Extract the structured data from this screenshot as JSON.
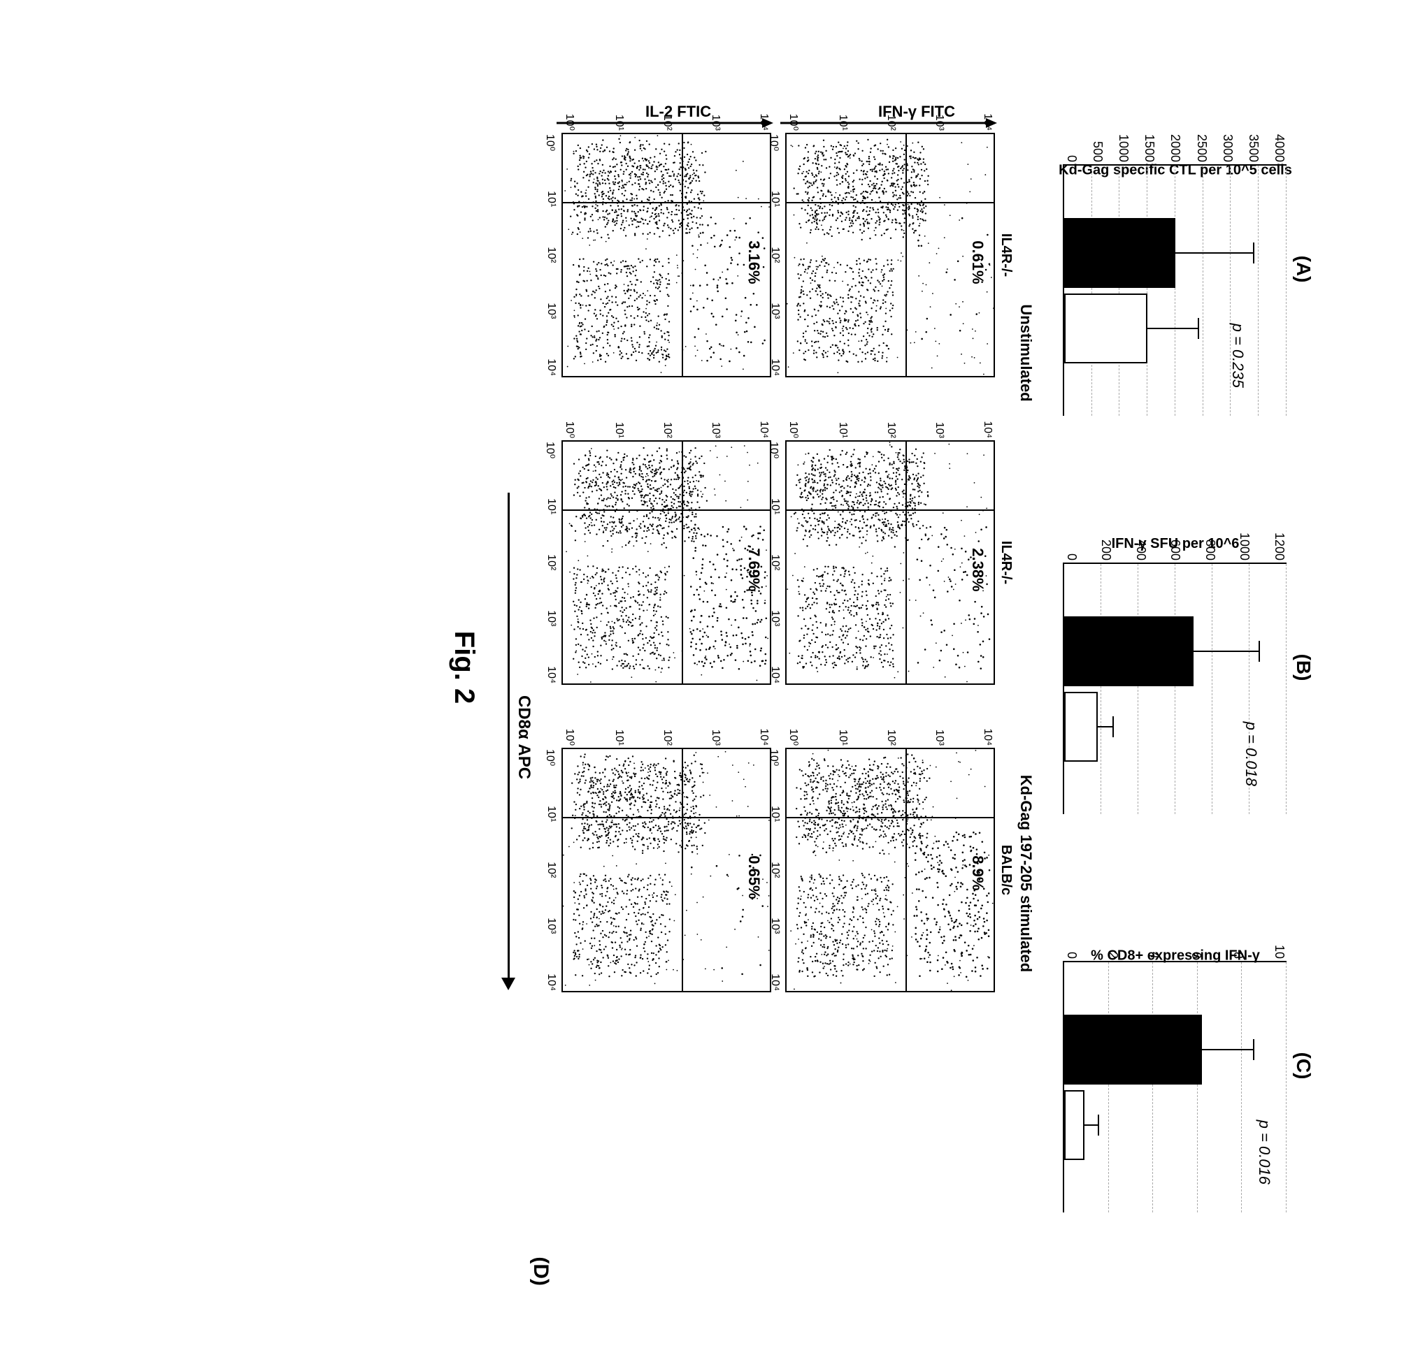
{
  "figure_caption": "Fig. 2",
  "panels": {
    "A": {
      "label": "(A)",
      "y_label": "Kd-Gag specific CTL per 10^5 cells",
      "y_ticks": [
        "4000",
        "3500",
        "3000",
        "2500",
        "2000",
        "1500",
        "1000",
        "500",
        "0"
      ],
      "y_max": 4000,
      "p_value": "p = 0.235",
      "p_value_top_pct": 18,
      "bars": [
        {
          "value": 2000,
          "error": 1400,
          "fill": "black"
        },
        {
          "value": 1500,
          "error": 900,
          "fill": "white"
        }
      ]
    },
    "B": {
      "label": "(B)",
      "y_label": "IFN-γ SFU per 10^6",
      "y_ticks": [
        "1200",
        "1000",
        "800",
        "600",
        "400",
        "200",
        "0"
      ],
      "y_max": 1200,
      "p_value": "p = 0.018",
      "p_value_top_pct": 12,
      "bars": [
        {
          "value": 700,
          "error": 350,
          "fill": "black"
        },
        {
          "value": 180,
          "error": 80,
          "fill": "white"
        }
      ]
    },
    "C": {
      "label": "(C)",
      "y_label": "% CD8+ expressing IFN-γ",
      "y_ticks": [
        "10",
        "8",
        "6",
        "4",
        "2",
        "0"
      ],
      "y_max": 10,
      "p_value": "p = 0.016",
      "p_value_top_pct": 6,
      "bars": [
        {
          "value": 6.2,
          "error": 2.3,
          "fill": "black"
        },
        {
          "value": 0.9,
          "error": 0.6,
          "fill": "white"
        }
      ]
    }
  },
  "panel_D_label": "(D)",
  "stimulation_headers": [
    "Unstimulated",
    "Kd-Gag 197-205  stimulated"
  ],
  "scatter_row1_ylabel": "IFN-γ FITC",
  "scatter_row2_ylabel": "IL-2 FTIC",
  "x_axis_label": "CD8α APC",
  "log_ticks": [
    "10⁰",
    "10¹",
    "10²",
    "10³",
    "10⁴"
  ],
  "row1": [
    {
      "title": "IL4R-/-",
      "pct": "0.61%",
      "seed": 1
    },
    {
      "title": "IL4R-/-",
      "pct": "2.38%",
      "seed": 2
    },
    {
      "title": "BALB/c",
      "pct": "8.9%",
      "seed": 3
    }
  ],
  "row2": [
    {
      "title": "",
      "pct": "3.16%",
      "seed": 4
    },
    {
      "title": "",
      "pct": "7.69%",
      "seed": 5
    },
    {
      "title": "",
      "pct": "0.65%",
      "seed": 6
    }
  ],
  "quadrant": {
    "h_pct": 42,
    "v_pct": 28
  },
  "colors": {
    "black": "#000000",
    "white": "#ffffff",
    "grid": "#aaaaaa"
  }
}
